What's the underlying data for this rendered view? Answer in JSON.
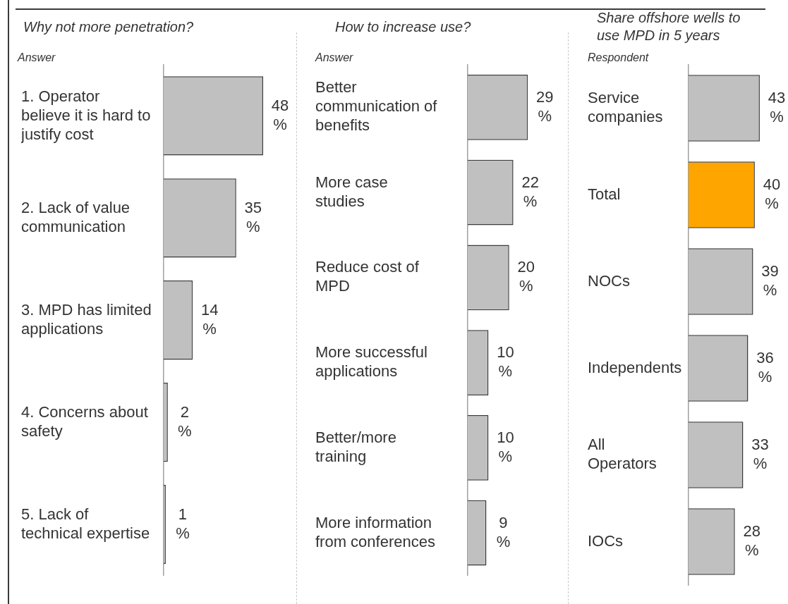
{
  "chart_data": [
    {
      "type": "bar",
      "orientation": "horizontal",
      "title": "Why not more penetration?",
      "ylabel": "Answer",
      "categories": [
        "1. Operator believe it is hard to justify cost",
        "2. Lack of value communication",
        "3. MPD has limited applications",
        "4. Concerns about safety",
        "5. Lack of technical expertise"
      ],
      "values": [
        48,
        35,
        14,
        2,
        1
      ],
      "value_labels": [
        "48 %",
        "35 %",
        "14 %",
        "2 %",
        "1 %"
      ],
      "colors": [
        "#c0c0c0",
        "#c0c0c0",
        "#c0c0c0",
        "#c0c0c0",
        "#c0c0c0"
      ],
      "tick_labels": "y"
    },
    {
      "type": "bar",
      "orientation": "horizontal",
      "title": "How to increase use?",
      "ylabel": "Answer",
      "categories": [
        "Better communication of benefits",
        "More case studies",
        "Reduce cost of MPD",
        "More successful applications",
        "Better/more training",
        "More information from conferences"
      ],
      "values": [
        29,
        22,
        20,
        10,
        10,
        9
      ],
      "value_labels": [
        "29 %",
        "22 %",
        "20 %",
        "10 %",
        "10 %",
        "9 %"
      ],
      "colors": [
        "#c0c0c0",
        "#c0c0c0",
        "#c0c0c0",
        "#c0c0c0",
        "#c0c0c0",
        "#c0c0c0"
      ],
      "tick_labels": "y"
    },
    {
      "type": "bar",
      "orientation": "horizontal",
      "title": "Share offshore wells to use MPD in 5 years",
      "ylabel": "Respondent",
      "categories": [
        "Service companies",
        "Total",
        "NOCs",
        "Independents",
        "All Operators",
        "IOCs"
      ],
      "values": [
        43,
        40,
        39,
        36,
        33,
        28
      ],
      "value_labels": [
        "43 %",
        "40 %",
        "39 %",
        "36 %",
        "33 %",
        "28 %"
      ],
      "colors": [
        "#c0c0c0",
        "#ffa500",
        "#c0c0c0",
        "#c0c0c0",
        "#c0c0c0",
        "#c0c0c0"
      ],
      "tick_labels": "y"
    }
  ]
}
